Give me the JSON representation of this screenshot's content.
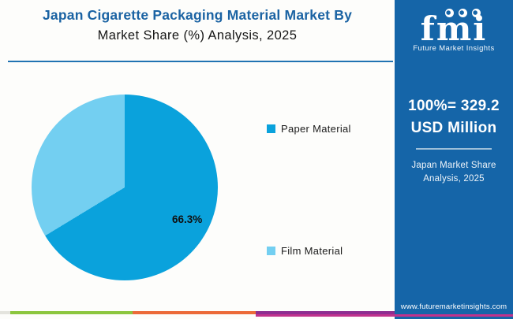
{
  "header": {
    "title_line1": "Japan Cigarette Packaging Material Market By",
    "title_line2": "Market Share (%) Analysis, 2025"
  },
  "chart_data": {
    "type": "pie",
    "title": "Japan Cigarette Packaging Material Market By Market Share (%) Analysis, 2025",
    "categories": [
      "Paper Material",
      "Film Material"
    ],
    "values": [
      66.3,
      33.7
    ],
    "slices": [
      {
        "label": "Paper Material",
        "value": 66.3,
        "color": "#0aa2dc",
        "data_label": "66.3%"
      },
      {
        "label": "Film Material",
        "value": 33.7,
        "color": "#73cff1",
        "data_label": ""
      }
    ],
    "start_angle_deg": 0,
    "direction": "clockwise",
    "legend_position": "right",
    "total_note": "100% = 329.2 USD Million"
  },
  "sidebar": {
    "logo_word": "fmi",
    "logo_subtext": "Future Market Insights",
    "stat_line1": "100%= 329.2",
    "stat_line2": "USD Million",
    "caption": "Japan Market Share Analysis, 2025",
    "website": "www.futuremarketinsights.com",
    "bg_color": "#1565a8"
  },
  "footer": {
    "segment_colors": [
      "#e4e4de",
      "#8cc63e",
      "#ec6a39",
      "#8e2d90"
    ],
    "underline_color": "#c0328c"
  }
}
